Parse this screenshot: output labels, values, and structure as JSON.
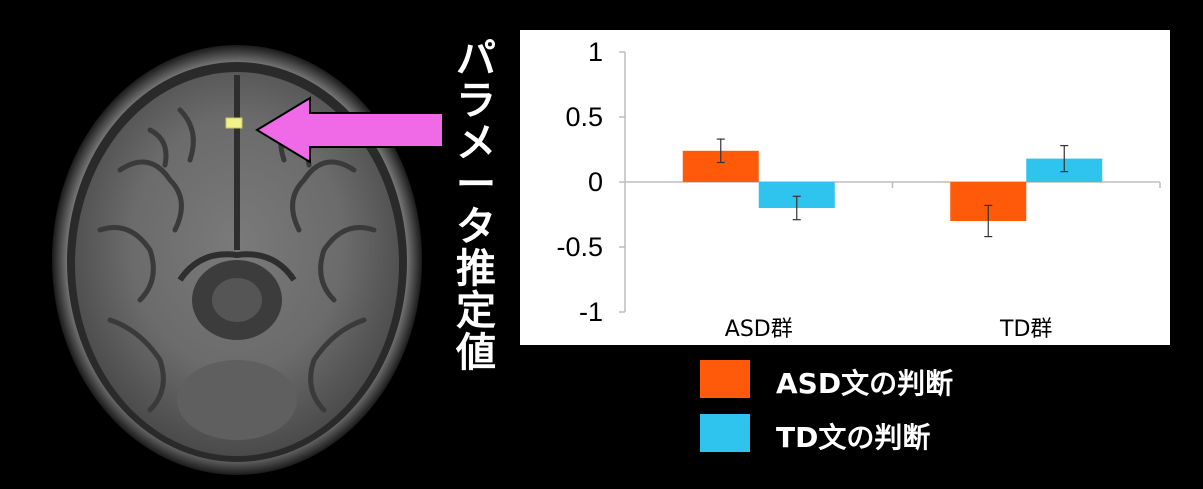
{
  "ylabel_chars": [
    "パ",
    "ラ",
    "メ",
    "ー",
    "タ",
    "推",
    "定",
    "値"
  ],
  "colors": {
    "asd": "#FF5A0A",
    "td": "#2EC4EE",
    "arrow": "#F06AE8",
    "highlight": "#F2F28A"
  },
  "legend": [
    {
      "label": "ASD文の判断",
      "color": "#FF5A0A"
    },
    {
      "label": "TD文の判断",
      "color": "#2EC4EE"
    }
  ],
  "chart_data": {
    "type": "bar",
    "categories": [
      "ASD群",
      "TD群"
    ],
    "series": [
      {
        "name": "ASD文の判断",
        "values": [
          0.24,
          -0.3
        ],
        "errors": [
          0.09,
          0.12
        ]
      },
      {
        "name": "TD文の判断",
        "values": [
          -0.2,
          0.18
        ],
        "errors": [
          0.09,
          0.1
        ]
      }
    ],
    "ylim": [
      -1,
      1
    ],
    "yticks": [
      "1",
      "0.5",
      "0",
      "-0.5",
      "-1"
    ],
    "ylabel": "パラメータ推定値",
    "grid": false,
    "legend_position": "bottom-right"
  }
}
